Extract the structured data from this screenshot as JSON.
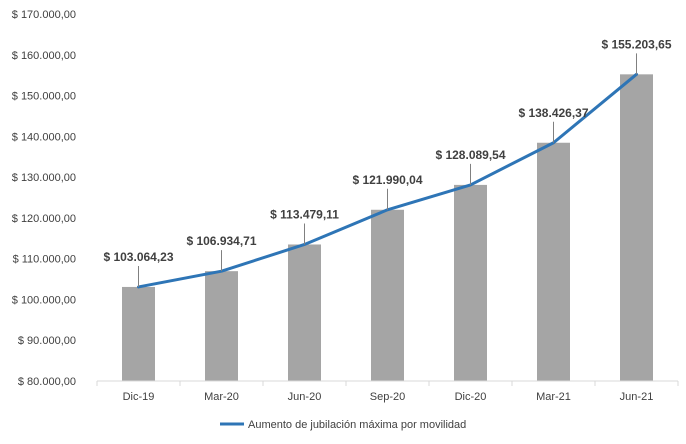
{
  "chart_data": {
    "type": "bar",
    "categories": [
      "Dic-19",
      "Mar-20",
      "Jun-20",
      "Sep-20",
      "Dic-20",
      "Mar-21",
      "Jun-21"
    ],
    "values": [
      103064.23,
      106934.71,
      113479.11,
      121990.04,
      128089.54,
      138426.37,
      155203.65
    ],
    "data_labels": [
      "$ 103.064,23",
      "$ 106.934,71",
      "$ 113.479,11",
      "$ 121.990,04",
      "$ 128.089,54",
      "$ 138.426,37",
      "$ 155.203,65"
    ],
    "series": [
      {
        "name": "Aumento de jubilación máxima por movilidad",
        "type": "line",
        "values": [
          103064.23,
          106934.71,
          113479.11,
          121990.04,
          128089.54,
          138426.37,
          155203.65
        ]
      }
    ],
    "ylim": [
      80000,
      170000
    ],
    "y_ticks": [
      80000,
      90000,
      100000,
      110000,
      120000,
      130000,
      140000,
      150000,
      160000,
      170000
    ],
    "y_tick_labels": [
      "$ 80.000,00",
      "$ 90.000,00",
      "$ 100.000,00",
      "$ 110.000,00",
      "$ 120.000,00",
      "$ 130.000,00",
      "$ 140.000,00",
      "$ 150.000,00",
      "$ 160.000,00",
      "$ 170.000,00"
    ],
    "title": "",
    "xlabel": "",
    "ylabel": "",
    "grid": false,
    "legend_position": "bottom",
    "colors": {
      "bar": "#a5a5a5",
      "line": "#2e75b6",
      "text": "#404040",
      "axis": "#d9d9d9"
    }
  }
}
